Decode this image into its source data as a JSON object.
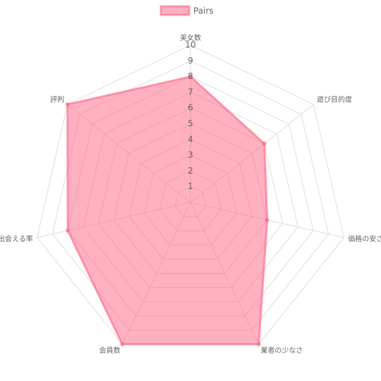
{
  "chart_data": {
    "type": "radar",
    "categories": [
      "美女数",
      "遊び目的度",
      "価格の安さ",
      "業者の少なさ",
      "会員数",
      "出会える率",
      "評判"
    ],
    "series": [
      {
        "name": "Pairs",
        "color": "#ff6384",
        "values": [
          8,
          6,
          5,
          10,
          10,
          8,
          10
        ]
      }
    ],
    "rlim": [
      0,
      10
    ],
    "rticks": [
      1,
      2,
      3,
      4,
      5,
      6,
      7,
      8,
      9,
      10
    ],
    "grid": true,
    "legend": "top"
  }
}
